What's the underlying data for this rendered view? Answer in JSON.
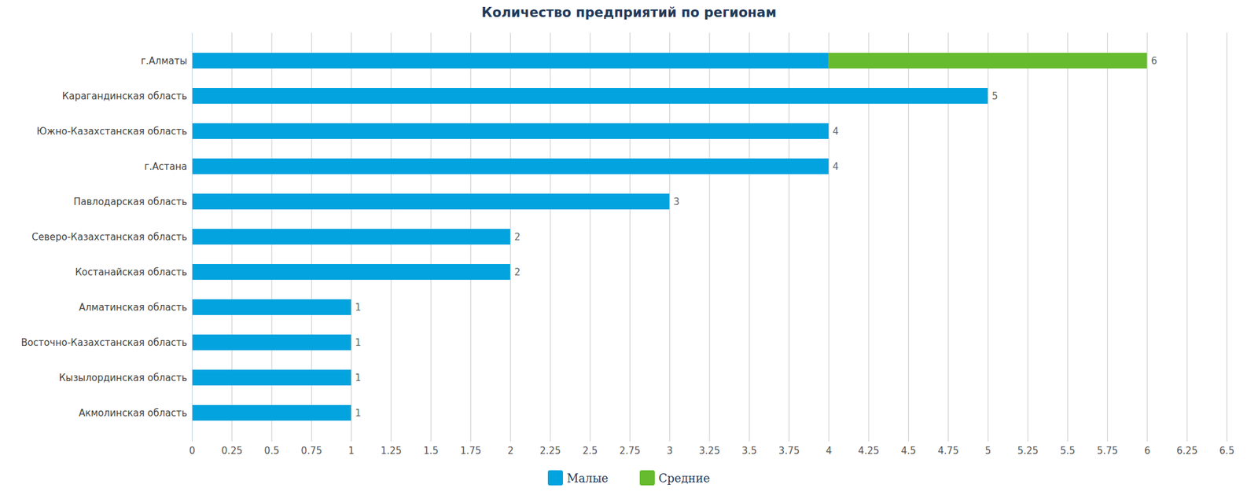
{
  "chart_data": {
    "type": "bar",
    "orientation": "horizontal",
    "stacked": true,
    "title": "Количество предприятий по регионам",
    "categories": [
      "г.Алматы",
      "Карагандинская область",
      "Южно-Казахстанская область",
      "г.Астана",
      "Павлодарская область",
      "Северо-Казахстанская область",
      "Костанайская область",
      "Алматинская область",
      "Восточно-Казахстанская область",
      "Кызылординская область",
      "Акмолинская область"
    ],
    "series": [
      {
        "name": "Малые",
        "color": "#02a3de",
        "values": [
          4,
          5,
          4,
          4,
          3,
          2,
          2,
          1,
          1,
          1,
          1
        ]
      },
      {
        "name": "Средние",
        "color": "#66bb2e",
        "values": [
          2,
          0,
          0,
          0,
          0,
          0,
          0,
          0,
          0,
          0,
          0
        ]
      }
    ],
    "totals": [
      6,
      5,
      4,
      4,
      3,
      2,
      2,
      1,
      1,
      1,
      1
    ],
    "xlim": [
      0,
      6.5
    ],
    "xticks": [
      0,
      0.25,
      0.5,
      0.75,
      1,
      1.25,
      1.5,
      1.75,
      2,
      2.25,
      2.5,
      2.75,
      3,
      3.25,
      3.5,
      3.75,
      4,
      4.25,
      4.5,
      4.75,
      5,
      5.25,
      5.5,
      5.75,
      6,
      6.25,
      6.5
    ],
    "grid": true,
    "legend": "bottom"
  }
}
